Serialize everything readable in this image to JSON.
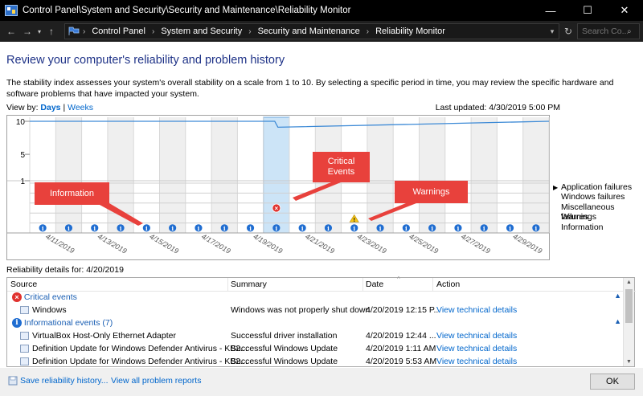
{
  "window": {
    "title": "Control Panel\\System and Security\\Security and Maintenance\\Reliability Monitor",
    "minimize": "—",
    "maximize": "☐",
    "close": "✕"
  },
  "address": {
    "crumbs": [
      "Control Panel",
      "System and Security",
      "Security and Maintenance",
      "Reliability Monitor"
    ],
    "search_placeholder": "Search Co..."
  },
  "heading": "Review your computer's reliability and problem history",
  "description": "The stability index assesses your system's overall stability on a scale from 1 to 10. By selecting a specific period in time, you may review the specific hardware and software problems that have impacted your system.",
  "view_by": {
    "label": "View by:",
    "days": "Days",
    "separator": "|",
    "weeks": "Weeks"
  },
  "last_updated": "Last updated: 4/30/2019 5:00 PM",
  "chart_data": {
    "type": "line",
    "y_ticks": [
      "10",
      "5",
      "1"
    ],
    "ylim": [
      1,
      10
    ],
    "x_labels": [
      "4/11/2019",
      "4/13/2019",
      "4/15/2019",
      "4/17/2019",
      "4/19/2019",
      "4/21/2019",
      "4/23/2019",
      "4/25/2019",
      "4/27/2019",
      "4/29/2019"
    ],
    "selected_date": "4/20/2019",
    "categories": [
      "Application failures",
      "Windows failures",
      "Miscellaneous failures",
      "Warnings",
      "Information"
    ],
    "stability_index": [
      {
        "x": "4/11/2019",
        "y": 10
      },
      {
        "x": "4/20/2019",
        "y": 10
      },
      {
        "x": "4/20/2019",
        "y": 9.1
      },
      {
        "x": "4/30/2019",
        "y": 10
      }
    ],
    "critical_dates": [
      "4/20/2019"
    ],
    "warning_dates": [
      "4/23/2019"
    ],
    "info_dates": [
      "4/11/2019",
      "4/12/2019",
      "4/13/2019",
      "4/14/2019",
      "4/15/2019",
      "4/16/2019",
      "4/17/2019",
      "4/18/2019",
      "4/19/2019",
      "4/20/2019",
      "4/21/2019",
      "4/22/2019",
      "4/23/2019",
      "4/24/2019",
      "4/25/2019",
      "4/26/2019",
      "4/27/2019",
      "4/28/2019",
      "4/29/2019",
      "4/30/2019"
    ]
  },
  "callouts": {
    "information": "Information",
    "critical": "Critical Events",
    "warnings": "Warnings"
  },
  "details": {
    "label": "Reliability details for: 4/20/2019",
    "columns": [
      "Source",
      "Summary",
      "Date",
      "Action"
    ],
    "groups": [
      {
        "title": "Critical events",
        "rows": [
          {
            "source": "Windows",
            "summary": "Windows was not properly shut down",
            "date": "4/20/2019 12:15 P...",
            "action": "View  technical details"
          }
        ]
      },
      {
        "title": "Informational events (7)",
        "rows": [
          {
            "source": "VirtualBox Host-Only Ethernet Adapter",
            "summary": "Successful driver installation",
            "date": "4/20/2019 12:44 ...",
            "action": "View  technical details"
          },
          {
            "source": "Definition Update for Windows Defender Antivirus - KB2...",
            "summary": "Successful Windows Update",
            "date": "4/20/2019 1:11 AM",
            "action": "View  technical details"
          },
          {
            "source": "Definition Update for Windows Defender Antivirus - KB2...",
            "summary": "Successful Windows Update",
            "date": "4/20/2019 5:53 AM",
            "action": "View  technical details"
          }
        ]
      }
    ]
  },
  "footer": {
    "save": "Save reliability history...",
    "view_all": "View all problem reports",
    "ok": "OK"
  }
}
